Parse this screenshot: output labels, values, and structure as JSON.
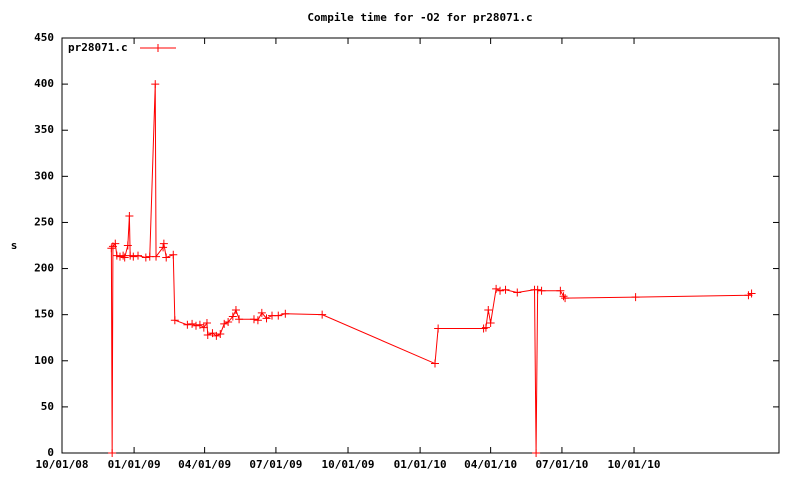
{
  "chart_data": {
    "type": "line",
    "title": "Compile time for -O2 for pr28071.c",
    "y_label": "s",
    "legend": "top-left",
    "grid": false,
    "xlim": [
      "10/01/08",
      "04/04/11"
    ],
    "xticks": [
      "10/01/08",
      "01/01/09",
      "04/01/09",
      "07/01/09",
      "10/01/09",
      "01/01/10",
      "04/01/10",
      "07/01/10",
      "10/01/10"
    ],
    "ylim": [
      0,
      450
    ],
    "yticks": [
      0,
      50,
      100,
      150,
      200,
      250,
      300,
      350,
      400,
      450
    ],
    "x": [
      "12/03/08",
      "12/04/08",
      "12/05/08",
      "12/08/08",
      "12/10/08",
      "12/14/08",
      "12/18/08",
      "12/20/08",
      "12/24/08",
      "12/26/08",
      "12/27/08",
      "12/31/08",
      "01/06/09",
      "01/16/09",
      "01/21/09",
      "01/28/09",
      "01/29/09",
      "02/07/09",
      "02/08/09",
      "02/11/09",
      "02/20/09",
      "02/22/09",
      "03/10/09",
      "03/16/09",
      "03/21/09",
      "03/26/09",
      "03/31/09",
      "04/04/09",
      "04/05/09",
      "04/11/09",
      "04/16/09",
      "04/21/09",
      "04/26/09",
      "05/01/09",
      "05/07/09",
      "05/11/09",
      "05/15/09",
      "06/03/09",
      "06/08/09",
      "06/13/09",
      "06/19/09",
      "06/26/09",
      "07/04/09",
      "07/13/09",
      "08/29/09",
      "01/20/10",
      "01/24/10",
      "03/23/10",
      "03/26/10",
      "03/29/10",
      "04/01/10",
      "04/08/10",
      "04/13/10",
      "04/20/10",
      "05/05/10",
      "05/27/10",
      "05/29/10",
      "05/31/10",
      "06/05/10",
      "06/29/10",
      "07/03/10",
      "07/05/10",
      "10/03/10",
      "02/24/11",
      "02/28/11"
    ],
    "series": [
      {
        "name": "pr28071.c",
        "color": "#ff0000",
        "values": [
          222,
          0,
          224,
          227,
          214,
          213,
          214,
          212,
          225,
          257,
          214,
          213,
          214,
          212,
          213,
          400,
          213,
          223,
          227,
          212,
          215,
          144,
          139,
          140,
          138,
          139,
          136,
          141,
          128,
          130,
          127,
          129,
          140,
          142,
          148,
          155,
          145,
          145,
          144,
          152,
          146,
          149,
          149,
          151,
          150,
          97,
          135,
          135,
          136,
          155,
          141,
          178,
          176,
          177,
          174,
          177,
          0,
          177,
          176,
          176,
          170,
          168,
          169,
          171,
          173
        ]
      }
    ]
  }
}
